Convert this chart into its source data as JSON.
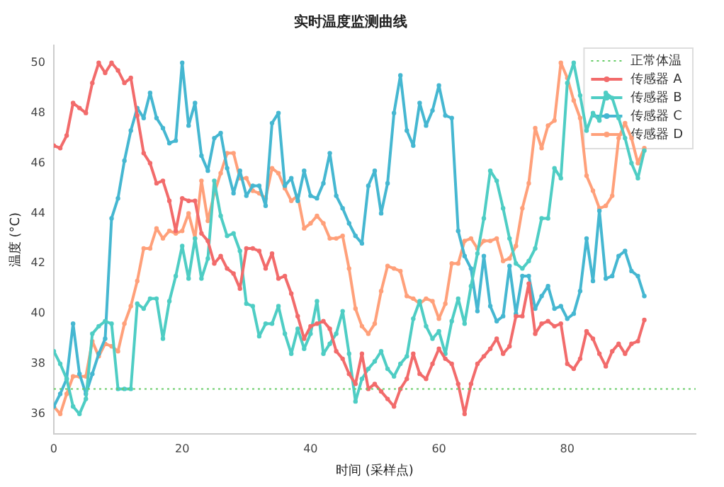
{
  "chart_data": {
    "type": "line",
    "title": "实时温度监测曲线",
    "xlabel": "时间 (采样点)",
    "ylabel": "温度 (°C)",
    "x": [
      0,
      1,
      2,
      3,
      4,
      5,
      6,
      7,
      8,
      9,
      10,
      11,
      12,
      13,
      14,
      15,
      16,
      17,
      18,
      19,
      20,
      21,
      22,
      23,
      24,
      25,
      26,
      27,
      28,
      29,
      30,
      31,
      32,
      33,
      34,
      35,
      36,
      37,
      38,
      39,
      40,
      41,
      42,
      43,
      44,
      45,
      46,
      47,
      48,
      49,
      50,
      51,
      52,
      53,
      54,
      55,
      56,
      57,
      58,
      59,
      60,
      61,
      62,
      63,
      64,
      65,
      66,
      67,
      68,
      69,
      70,
      71,
      72,
      73,
      74,
      75,
      76,
      77,
      78,
      79,
      80,
      81,
      82,
      83,
      84,
      85,
      86,
      87,
      88,
      89,
      90,
      91,
      92
    ],
    "series": [
      {
        "name": "传感器 A",
        "color": "#f26b6b",
        "values": [
          46.7,
          46.6,
          47.1,
          48.4,
          48.2,
          48.0,
          49.2,
          50.0,
          49.6,
          50.0,
          49.7,
          49.2,
          49.4,
          47.9,
          46.4,
          46.0,
          45.2,
          45.3,
          44.5,
          43.3,
          44.6,
          44.5,
          44.5,
          43.2,
          42.9,
          42.0,
          42.3,
          41.8,
          41.6,
          41.0,
          42.6,
          42.6,
          42.5,
          41.8,
          42.4,
          41.4,
          41.5,
          40.8,
          39.9,
          39.0,
          39.5,
          39.6,
          39.7,
          39.4,
          38.5,
          38.2,
          37.6,
          37.2,
          38.4,
          37.0,
          37.2,
          36.9,
          36.6,
          36.3,
          37.0,
          37.4,
          38.4,
          37.6,
          37.4,
          38.0,
          38.6,
          38.2,
          38.0,
          37.2,
          36.0,
          37.2,
          38.0,
          38.3,
          38.6,
          39.0,
          38.4,
          38.7,
          39.9,
          39.9,
          41.2,
          39.2,
          39.6,
          39.7,
          39.5,
          39.6,
          38.0,
          37.8,
          38.2,
          39.3,
          39.0,
          38.4,
          37.9,
          38.5,
          38.8,
          38.4,
          38.8,
          38.9,
          39.75
        ]
      },
      {
        "name": "传感器 B",
        "color": "#4ecdc4",
        "values": [
          38.5,
          38.0,
          37.4,
          36.3,
          36.0,
          36.6,
          39.2,
          39.5,
          39.7,
          39.6,
          37.0,
          37.0,
          37.0,
          40.4,
          40.2,
          40.6,
          40.6,
          39.0,
          40.5,
          41.5,
          42.7,
          41.4,
          43.0,
          41.4,
          42.2,
          45.3,
          43.9,
          43.1,
          43.2,
          42.5,
          40.4,
          40.3,
          39.1,
          39.6,
          39.6,
          40.3,
          39.2,
          38.4,
          39.4,
          38.6,
          39.2,
          40.5,
          38.4,
          38.8,
          39.2,
          40.1,
          38.4,
          36.5,
          37.4,
          37.8,
          38.1,
          38.5,
          37.8,
          37.5,
          38.0,
          38.3,
          39.8,
          40.5,
          39.5,
          39.0,
          39.3,
          38.4,
          39.7,
          40.6,
          39.6,
          41.1,
          42.4,
          43.8,
          45.7,
          45.3,
          44.2,
          43.0,
          42.0,
          41.8,
          42.1,
          42.6,
          43.8,
          43.8,
          45.8,
          45.4,
          49.2,
          50.0,
          48.7,
          47.3,
          48.0,
          47.7,
          48.8,
          48.6,
          47.8,
          47.0,
          46.0,
          45.4,
          46.5
        ]
      },
      {
        "name": "传感器 C",
        "color": "#45b7d1",
        "values": [
          36.3,
          36.8,
          37.4,
          39.6,
          37.6,
          36.8,
          37.6,
          38.4,
          39.0,
          43.8,
          44.6,
          46.1,
          47.3,
          48.2,
          47.8,
          48.8,
          47.8,
          47.4,
          46.8,
          46.9,
          50.0,
          47.5,
          48.4,
          46.3,
          45.7,
          47.0,
          47.2,
          45.8,
          44.8,
          45.7,
          44.7,
          45.1,
          45.1,
          44.3,
          47.6,
          48.0,
          45.1,
          45.4,
          44.5,
          45.7,
          44.7,
          44.6,
          45.2,
          46.4,
          44.7,
          44.2,
          43.6,
          43.1,
          42.8,
          45.1,
          45.7,
          44.0,
          45.2,
          48.0,
          49.5,
          47.3,
          46.7,
          48.4,
          47.5,
          48.1,
          49.1,
          47.9,
          47.8,
          43.3,
          42.3,
          41.8,
          40.1,
          42.3,
          40.3,
          39.7,
          39.9,
          41.9,
          40.0,
          41.5,
          41.5,
          40.2,
          40.7,
          41.1,
          40.2,
          40.3,
          39.8,
          40.0,
          40.9,
          43.0,
          41.3,
          44.1,
          41.4,
          41.5,
          42.3,
          42.5,
          41.7,
          41.5,
          40.7
        ]
      },
      {
        "name": "传感器 D",
        "color": "#ffa07a",
        "values": [
          36.3,
          36.0,
          36.8,
          37.5,
          37.5,
          37.5,
          38.9,
          38.3,
          38.8,
          38.7,
          38.5,
          39.6,
          40.3,
          41.3,
          42.6,
          42.6,
          43.4,
          43.0,
          43.3,
          43.2,
          43.3,
          44.0,
          43.0,
          45.3,
          43.7,
          44.8,
          45.6,
          46.4,
          46.4,
          45.4,
          45.4,
          44.9,
          44.8,
          44.6,
          45.8,
          45.6,
          45.0,
          44.5,
          44.7,
          43.4,
          43.6,
          43.9,
          43.6,
          43.0,
          43.0,
          43.1,
          41.8,
          40.2,
          39.5,
          39.2,
          39.6,
          40.9,
          41.9,
          41.8,
          41.7,
          40.7,
          40.6,
          40.4,
          40.6,
          40.5,
          39.8,
          40.4,
          42.0,
          42.0,
          42.9,
          43.0,
          42.6,
          42.9,
          42.9,
          43.0,
          42.1,
          42.2,
          42.7,
          44.2,
          45.2,
          47.4,
          46.6,
          47.5,
          47.7,
          50.0,
          49.4,
          48.5,
          47.8,
          45.5,
          44.9,
          44.2,
          44.3,
          44.7,
          47.0,
          47.6,
          47.0,
          46.0,
          46.6
        ]
      }
    ],
    "ref_lines": [
      {
        "axis": "y",
        "value": 37,
        "label": "正常体温",
        "color": "#66cc66",
        "line_style": "dotted"
      }
    ],
    "xlim": [
      0,
      100
    ],
    "xticks": [
      0,
      20,
      40,
      60,
      80
    ],
    "ylim": [
      35.2,
      50.7
    ],
    "yticks": [
      36,
      38,
      40,
      42,
      44,
      46,
      48,
      50
    ],
    "grid": false,
    "legend": "top right",
    "marker": "circle",
    "line_style": "solid"
  }
}
